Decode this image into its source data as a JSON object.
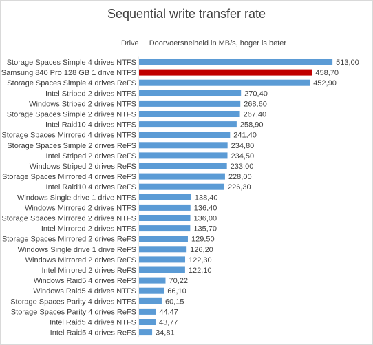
{
  "chart_data": {
    "type": "bar",
    "orientation": "horizontal",
    "title": "Sequential write transfer rate",
    "header_left": "Drive",
    "header_right": "Doorvoersnelheid in MB/s, hoger is beter",
    "categories": [
      "Storage Spaces Simple  4 drives NTFS",
      "Samsung 840 Pro 128 GB 1 drive NTFS",
      "Storage Spaces Simple  4 drives ReFS",
      "Intel Striped 2 drives NTFS",
      "Windows Striped  2 drives NTFS",
      "Storage Spaces Simple  2 drives NTFS",
      "Intel Raid10  4 drives NTFS",
      "Storage Spaces Mirrored  4 drives NTFS",
      "Storage Spaces Simple  2 drives ReFS",
      "Intel Striped 2 drives ReFS",
      "Windows Striped  2 drives ReFS",
      "Storage Spaces Mirrored  4 drives ReFS",
      "Intel Raid10  4 drives ReFS",
      "Windows Single drive 1 drive NTFS",
      "Windows Mirrored  2 drives NTFS",
      "Storage Spaces Mirrored  2 drives NTFS",
      "Intel Mirrored 2 drives NTFS",
      "Storage Spaces Mirrored  2 drives ReFS",
      "Windows Single drive 1 drive ReFS",
      "Windows Mirrored  2 drives ReFS",
      "Intel Mirrored 2 drives ReFS",
      "Windows Raid5  4 drives ReFS",
      "Windows Raid5  4 drives NTFS",
      "Storage Spaces Parity  4 drives NTFS",
      "Storage Spaces Parity  4 drives ReFS",
      "Intel Raid5  4 drives NTFS",
      "Intel Raid5  4 drives ReFS"
    ],
    "values": [
      513.0,
      458.7,
      452.9,
      270.4,
      268.6,
      267.4,
      258.9,
      241.4,
      234.8,
      234.5,
      233.0,
      228.0,
      226.3,
      138.4,
      136.4,
      136.0,
      135.7,
      129.5,
      126.2,
      122.3,
      122.1,
      70.22,
      66.1,
      60.15,
      44.47,
      43.77,
      34.81
    ],
    "value_labels": [
      "513,00",
      "458,70",
      "452,90",
      "270,40",
      "268,60",
      "267,40",
      "258,90",
      "241,40",
      "234,80",
      "234,50",
      "233,00",
      "228,00",
      "226,30",
      "138,40",
      "136,40",
      "136,00",
      "135,70",
      "129,50",
      "126,20",
      "122,30",
      "122,10",
      "70,22",
      "66,10",
      "60,15",
      "44,47",
      "43,77",
      "34,81"
    ],
    "highlight_index": 1,
    "colors": {
      "default": "#5b9bd5",
      "highlight": "#c00000",
      "text": "#404040",
      "axis": "#d9d9d9"
    },
    "grid": false,
    "legend": "none"
  }
}
